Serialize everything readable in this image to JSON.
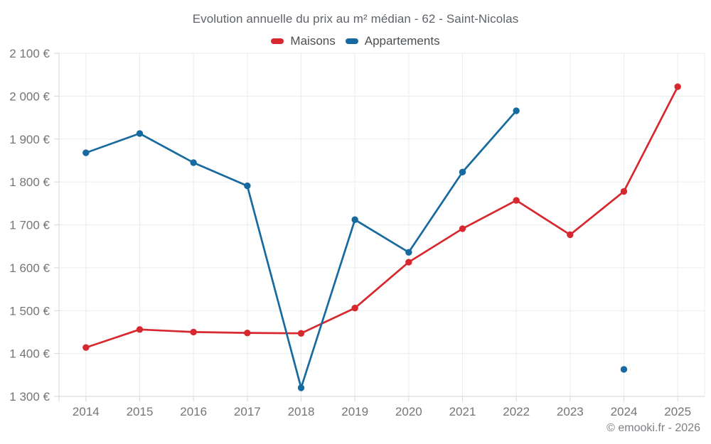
{
  "header": {
    "title": "Evolution annuelle du prix au m² médian - 62 - Saint-Nicolas"
  },
  "legend": [
    {
      "label": "Maisons",
      "color": "#d7282f"
    },
    {
      "label": "Appartements",
      "color": "#176a9f"
    }
  ],
  "footer": {
    "credit": "© emooki.fr - 2026"
  },
  "chart_data": {
    "type": "line",
    "title": "Evolution annuelle du prix au m² médian - 62 - Saint-Nicolas",
    "categories": [
      "2014",
      "2015",
      "2016",
      "2017",
      "2018",
      "2019",
      "2020",
      "2021",
      "2022",
      "2023",
      "2024",
      "2025"
    ],
    "series": [
      {
        "name": "Maisons",
        "color": "#d7282f",
        "values": [
          1414,
          1456,
          1450,
          1448,
          1447,
          1506,
          1613,
          1691,
          1757,
          1677,
          1778,
          2022
        ]
      },
      {
        "name": "Appartements",
        "color": "#176a9f",
        "values": [
          1868,
          1913,
          1845,
          1791,
          1320,
          1712,
          1636,
          1823,
          1966,
          null,
          1363,
          null
        ]
      }
    ],
    "ylabel": "",
    "xlabel": "",
    "ylim": [
      1300,
      2100
    ],
    "ytick_values": [
      1300,
      1400,
      1500,
      1600,
      1700,
      1800,
      1900,
      2000,
      2100
    ],
    "ytick_labels": [
      "1 300 €",
      "1 400 €",
      "1 500 €",
      "1 600 €",
      "1 700 €",
      "1 800 €",
      "1 900 €",
      "2 000 €",
      "2 100 €"
    ],
    "grid": true,
    "legend_position": "top",
    "currency_suffix": "€"
  }
}
